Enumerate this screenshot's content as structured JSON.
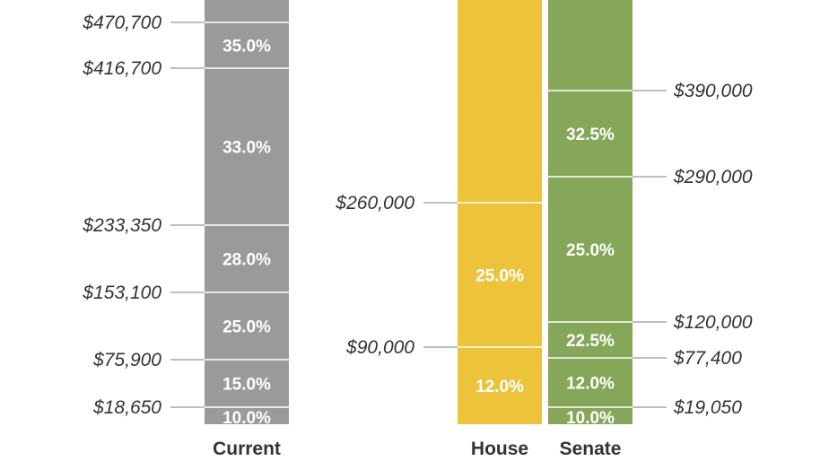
{
  "chart_data": {
    "type": "bar",
    "stacked": true,
    "xlabel": "",
    "ylabel": "",
    "colors": {
      "current": "#9a9a9a",
      "house": "#ecc33a",
      "senate": "#86a65a",
      "divider": "#ffffff",
      "tick_line": "#999999",
      "text": "#333333"
    },
    "columns": [
      {
        "key": "current",
        "label": "Current",
        "color": "#9a9a9a",
        "label_side": "left",
        "brackets": [
          {
            "rate": "10.0%",
            "from": 0,
            "to": 18650
          },
          {
            "rate": "15.0%",
            "from": 18650,
            "to": 75900
          },
          {
            "rate": "25.0%",
            "from": 75900,
            "to": 153100
          },
          {
            "rate": "28.0%",
            "from": 153100,
            "to": 233350
          },
          {
            "rate": "33.0%",
            "from": 233350,
            "to": 416700
          },
          {
            "rate": "35.0%",
            "from": 416700,
            "to": 470700
          }
        ],
        "thresholds": [
          {
            "value": 18650,
            "text": "$18,650"
          },
          {
            "value": 75900,
            "text": "$75,900"
          },
          {
            "value": 153100,
            "text": "$153,100"
          },
          {
            "value": 233350,
            "text": "$233,350"
          },
          {
            "value": 416700,
            "text": "$416,700"
          },
          {
            "value": 470700,
            "text": "$470,700"
          }
        ]
      },
      {
        "key": "house",
        "label": "House",
        "color": "#ecc33a",
        "label_side": "left",
        "brackets": [
          {
            "rate": "12.0%",
            "from": 0,
            "to": 90000
          },
          {
            "rate": "25.0%",
            "from": 90000,
            "to": 260000
          }
        ],
        "thresholds": [
          {
            "value": 90000,
            "text": "$90,000"
          },
          {
            "value": 260000,
            "text": "$260,000"
          }
        ]
      },
      {
        "key": "senate",
        "label": "Senate",
        "color": "#86a65a",
        "label_side": "right",
        "brackets": [
          {
            "rate": "10.0%",
            "from": 0,
            "to": 19050
          },
          {
            "rate": "12.0%",
            "from": 19050,
            "to": 77400
          },
          {
            "rate": "22.5%",
            "from": 77400,
            "to": 120000
          },
          {
            "rate": "25.0%",
            "from": 120000,
            "to": 290000
          },
          {
            "rate": "32.5%",
            "from": 290000,
            "to": 390000
          }
        ],
        "thresholds": [
          {
            "value": 19050,
            "text": "$19,050"
          },
          {
            "value": 77400,
            "text": "$77,400"
          },
          {
            "value": 120000,
            "text": "$120,000"
          },
          {
            "value": 290000,
            "text": "$290,000"
          },
          {
            "value": 390000,
            "text": "$390,000"
          }
        ]
      }
    ]
  }
}
